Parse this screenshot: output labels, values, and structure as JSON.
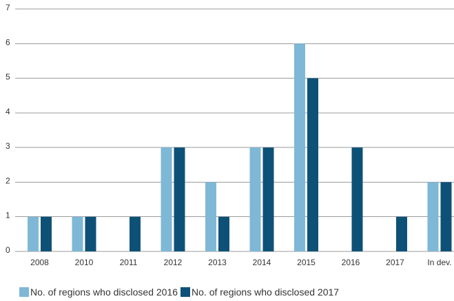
{
  "chart_data": {
    "type": "bar",
    "categories": [
      "2008",
      "2010",
      "2011",
      "2012",
      "2013",
      "2014",
      "2015",
      "2016",
      "2017",
      "In dev."
    ],
    "series": [
      {
        "name": "No. of regions who disclosed 2016",
        "color": "#7fb8d6",
        "values": [
          1,
          1,
          0,
          3,
          2,
          3,
          6,
          0,
          0,
          2
        ]
      },
      {
        "name": "No. of regions who disclosed 2017",
        "color": "#0e5177",
        "values": [
          1,
          1,
          1,
          3,
          1,
          3,
          5,
          3,
          1,
          2
        ]
      }
    ],
    "ylim": [
      0,
      7
    ],
    "yticks": [
      "0",
      "1",
      "2",
      "3",
      "4",
      "5",
      "6",
      "7"
    ],
    "grid": true,
    "legend_position": "bottom-left"
  }
}
